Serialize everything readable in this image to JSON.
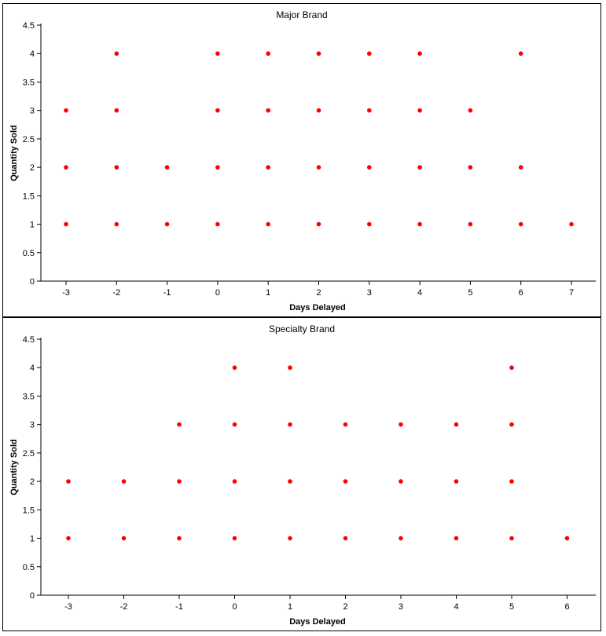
{
  "colors": {
    "marker": "#ff0000",
    "axis": "#000000",
    "background": "#ffffff"
  },
  "chart_data": [
    {
      "type": "scatter",
      "title": "Major Brand",
      "xlabel": "Days Delayed",
      "ylabel": "Quantity Sold",
      "xlim": [
        -3.5,
        7.5
      ],
      "ylim": [
        0,
        4.5
      ],
      "xticks": [
        "-3",
        "-2",
        "-1",
        "0",
        "1",
        "2",
        "3",
        "4",
        "5",
        "6",
        "7"
      ],
      "yticks": [
        "0",
        "0.5",
        "1",
        "1.5",
        "2",
        "2.5",
        "3",
        "3.5",
        "4",
        "4.5"
      ],
      "grid": false,
      "legend": "none",
      "points": [
        [
          -3,
          1
        ],
        [
          -2,
          1
        ],
        [
          -1,
          1
        ],
        [
          0,
          1
        ],
        [
          1,
          1
        ],
        [
          2,
          1
        ],
        [
          3,
          1
        ],
        [
          4,
          1
        ],
        [
          5,
          1
        ],
        [
          6,
          1
        ],
        [
          7,
          1
        ],
        [
          -3,
          2
        ],
        [
          -2,
          2
        ],
        [
          -1,
          2
        ],
        [
          0,
          2
        ],
        [
          1,
          2
        ],
        [
          2,
          2
        ],
        [
          3,
          2
        ],
        [
          4,
          2
        ],
        [
          5,
          2
        ],
        [
          6,
          2
        ],
        [
          -3,
          3
        ],
        [
          -2,
          3
        ],
        [
          0,
          3
        ],
        [
          1,
          3
        ],
        [
          2,
          3
        ],
        [
          3,
          3
        ],
        [
          4,
          3
        ],
        [
          5,
          3
        ],
        [
          -2,
          4
        ],
        [
          0,
          4
        ],
        [
          1,
          4
        ],
        [
          2,
          4
        ],
        [
          3,
          4
        ],
        [
          4,
          4
        ],
        [
          6,
          4
        ]
      ]
    },
    {
      "type": "scatter",
      "title": "Specialty Brand",
      "xlabel": "Days Delayed",
      "ylabel": "Quantity Sold",
      "xlim": [
        -3.5,
        6.5
      ],
      "ylim": [
        0,
        4.5
      ],
      "xticks": [
        "-3",
        "-2",
        "-1",
        "0",
        "1",
        "2",
        "3",
        "4",
        "5",
        "6"
      ],
      "yticks": [
        "0",
        "0.5",
        "1",
        "1.5",
        "2",
        "2.5",
        "3",
        "3.5",
        "4",
        "4.5"
      ],
      "grid": false,
      "legend": "none",
      "points": [
        [
          -3,
          1
        ],
        [
          -2,
          1
        ],
        [
          -1,
          1
        ],
        [
          0,
          1
        ],
        [
          1,
          1
        ],
        [
          2,
          1
        ],
        [
          3,
          1
        ],
        [
          4,
          1
        ],
        [
          5,
          1
        ],
        [
          6,
          1
        ],
        [
          -3,
          2
        ],
        [
          -2,
          2
        ],
        [
          -1,
          2
        ],
        [
          0,
          2
        ],
        [
          1,
          2
        ],
        [
          2,
          2
        ],
        [
          3,
          2
        ],
        [
          4,
          2
        ],
        [
          5,
          2
        ],
        [
          -1,
          3
        ],
        [
          0,
          3
        ],
        [
          1,
          3
        ],
        [
          2,
          3
        ],
        [
          3,
          3
        ],
        [
          4,
          3
        ],
        [
          5,
          3
        ],
        [
          0,
          4
        ],
        [
          1,
          4
        ],
        [
          5,
          4
        ]
      ]
    }
  ]
}
